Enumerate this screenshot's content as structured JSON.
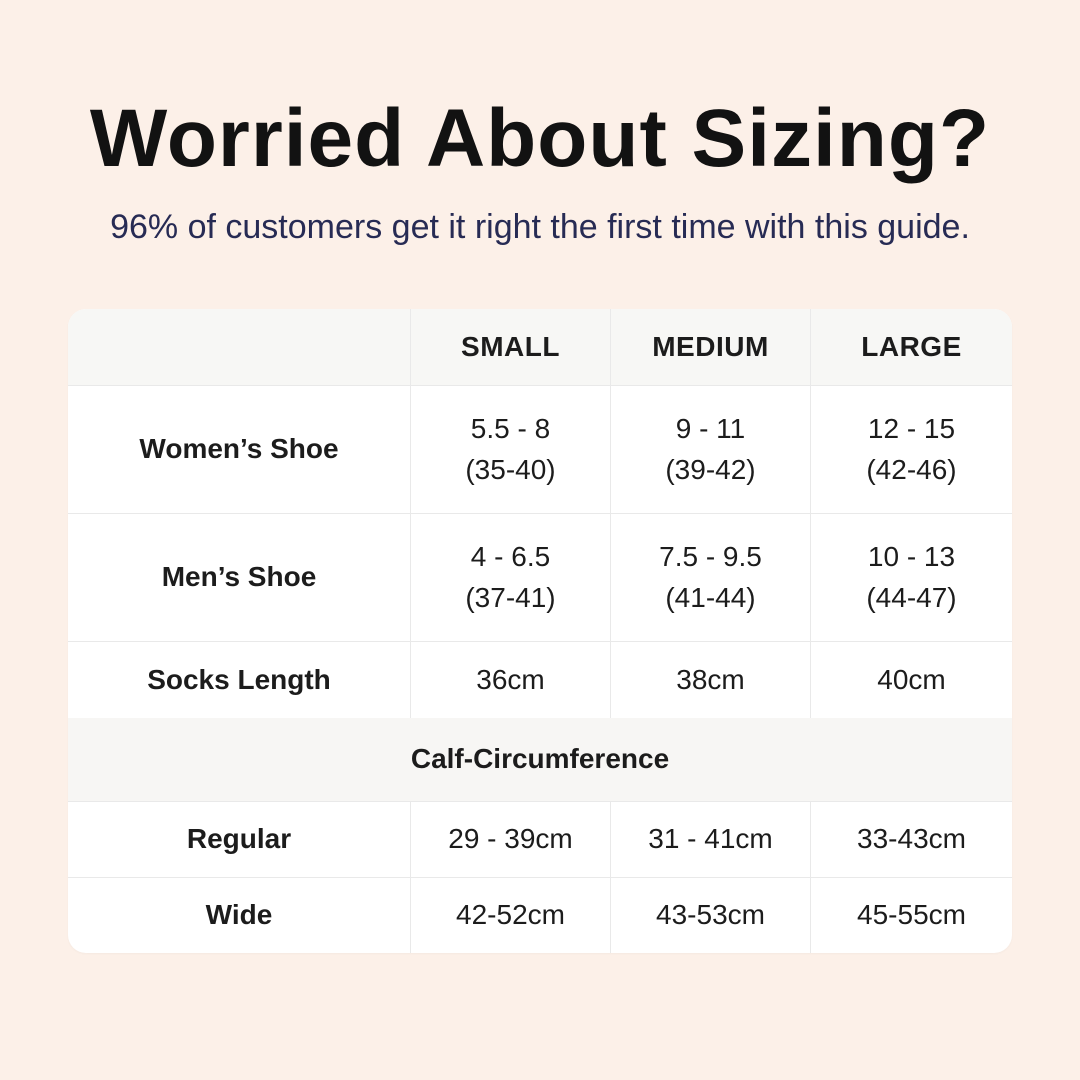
{
  "colors": {
    "background": "#fcf0e8",
    "title": "#121212",
    "subtitle": "#272b54",
    "card": "#ffffff",
    "header_bg": "#f7f7f5",
    "border": "#e9e9e9"
  },
  "header": {
    "title": "Worried About Sizing?",
    "subtitle": "96% of customers get it right the first time with this guide."
  },
  "table": {
    "columns": [
      "SMALL",
      "MEDIUM",
      "LARGE"
    ],
    "rows": [
      {
        "label": "Women’s Shoe",
        "small": "5.5 - 8\n(35-40)",
        "medium": "9 - 11\n(39-42)",
        "large": "12 - 15\n(42-46)"
      },
      {
        "label": "Men’s Shoe",
        "small": "4 - 6.5\n(37-41)",
        "medium": "7.5 - 9.5\n(41-44)",
        "large": "10 - 13\n(44-47)"
      },
      {
        "label": "Socks Length",
        "small": "36cm",
        "medium": "38cm",
        "large": "40cm"
      }
    ],
    "section_header": "Calf-Circumference",
    "calf_rows": [
      {
        "label": "Regular",
        "small": "29 - 39cm",
        "medium": "31 - 41cm",
        "large": "33-43cm"
      },
      {
        "label": "Wide",
        "small": "42-52cm",
        "medium": "43-53cm",
        "large": "45-55cm"
      }
    ]
  },
  "chart_data": {
    "type": "table",
    "title": "Worried About Sizing?",
    "subtitle": "96% of customers get it right the first time with this guide.",
    "columns": [
      "",
      "SMALL",
      "MEDIUM",
      "LARGE"
    ],
    "rows": [
      [
        "Women’s Shoe",
        "5.5 - 8 (35-40)",
        "9 - 11 (39-42)",
        "12 - 15 (42-46)"
      ],
      [
        "Men’s Shoe",
        "4 - 6.5 (37-41)",
        "7.5 - 9.5 (41-44)",
        "10 - 13 (44-47)"
      ],
      [
        "Socks Length",
        "36cm",
        "38cm",
        "40cm"
      ],
      [
        "Calf-Circumference",
        "",
        "",
        ""
      ],
      [
        "Regular",
        "29 - 39cm",
        "31 - 41cm",
        "33-43cm"
      ],
      [
        "Wide",
        "42-52cm",
        "43-53cm",
        "45-55cm"
      ]
    ]
  }
}
